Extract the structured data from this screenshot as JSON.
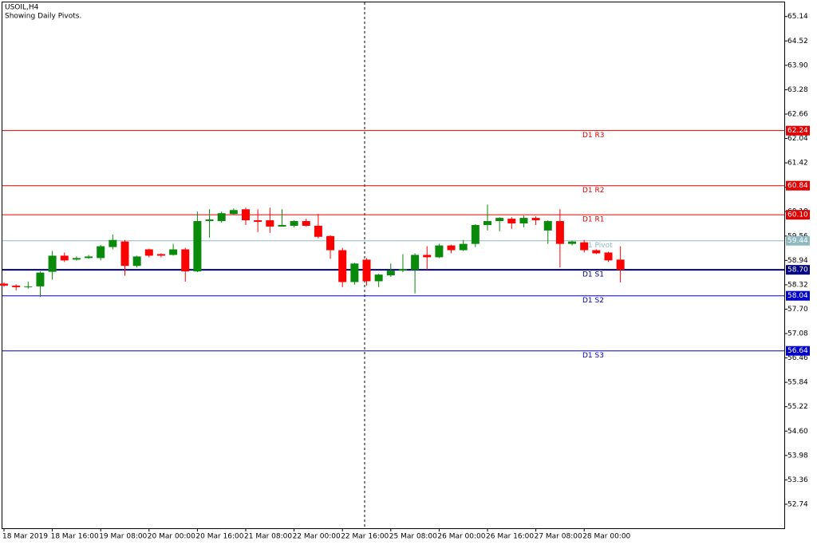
{
  "chart_data": {
    "type": "candlestick",
    "title": "USOIL,H4",
    "subtitle": "Showing Daily Pivots.",
    "x": [
      "18 Mar 2019",
      null,
      null,
      null,
      "18 Mar 16:00",
      null,
      null,
      null,
      "19 Mar 08:00",
      null,
      null,
      null,
      "20 Mar 00:00",
      null,
      null,
      null,
      "20 Mar 16:00",
      null,
      null,
      null,
      "21 Mar 08:00",
      null,
      null,
      null,
      "22 Mar 00:00",
      null,
      null,
      null,
      "22 Mar 16:00",
      null,
      null,
      null,
      "25 Mar 08:00",
      null,
      null,
      null,
      "26 Mar 00:00",
      null,
      null,
      null,
      "26 Mar 16:00",
      null,
      null,
      null,
      "27 Mar 08:00",
      null,
      null,
      null,
      "28 Mar 00:00",
      null,
      null,
      null
    ],
    "series": [
      {
        "up_color": "#0a8a0a",
        "down_color": "#ff0000",
        "open": [
          58.35,
          58.3,
          58.26,
          58.28,
          58.65,
          59.06,
          58.96,
          59.0,
          59.0,
          59.28,
          59.42,
          58.8,
          59.22,
          59.1,
          59.08,
          59.22,
          58.66,
          59.94,
          59.94,
          60.12,
          60.24,
          59.96,
          59.96,
          59.8,
          59.82,
          59.94,
          59.82,
          59.56,
          59.2,
          58.39,
          58.96,
          58.41,
          58.56,
          58.68,
          58.7,
          59.08,
          59.02,
          59.32,
          59.2,
          59.36,
          59.84,
          59.94,
          60.0,
          59.88,
          60.02,
          59.7,
          59.94,
          59.36,
          59.4,
          59.2,
          59.14,
          58.96
        ],
        "high": [
          58.38,
          58.33,
          58.4,
          58.66,
          59.18,
          59.14,
          59.04,
          59.08,
          59.33,
          59.6,
          59.46,
          59.06,
          59.24,
          59.12,
          59.36,
          59.26,
          60.18,
          60.24,
          60.18,
          60.26,
          60.28,
          60.24,
          60.28,
          60.24,
          59.96,
          60.0,
          60.12,
          59.58,
          59.26,
          58.88,
          59.0,
          58.6,
          58.86,
          59.1,
          59.12,
          59.3,
          59.36,
          59.34,
          59.46,
          59.86,
          60.36,
          60.04,
          60.04,
          60.08,
          60.06,
          59.96,
          60.24,
          59.44,
          59.46,
          59.22,
          59.16,
          59.3
        ],
        "low": [
          58.27,
          58.18,
          58.22,
          58.01,
          58.45,
          58.9,
          58.94,
          58.98,
          58.94,
          59.22,
          58.55,
          58.76,
          59.02,
          59.02,
          59.06,
          58.4,
          58.64,
          59.52,
          59.9,
          60.1,
          59.84,
          59.66,
          59.64,
          59.8,
          59.78,
          59.8,
          59.5,
          58.98,
          58.26,
          58.32,
          58.3,
          58.26,
          58.52,
          58.64,
          58.1,
          58.7,
          59.0,
          59.12,
          59.18,
          59.28,
          59.7,
          59.68,
          59.74,
          59.78,
          59.84,
          59.36,
          58.76,
          59.32,
          59.14,
          59.1,
          58.9,
          58.38
        ],
        "close": [
          58.3,
          58.26,
          58.28,
          58.63,
          59.06,
          58.94,
          59.0,
          59.04,
          59.3,
          59.46,
          58.8,
          59.04,
          59.06,
          59.06,
          59.22,
          58.66,
          59.94,
          59.98,
          60.14,
          60.22,
          59.96,
          59.92,
          59.8,
          59.84,
          59.94,
          59.82,
          59.54,
          59.2,
          58.39,
          58.86,
          58.41,
          58.58,
          58.68,
          58.72,
          59.08,
          59.02,
          59.32,
          59.2,
          59.36,
          59.84,
          59.94,
          60.02,
          59.88,
          60.02,
          59.96,
          59.94,
          59.36,
          59.42,
          59.2,
          59.12,
          58.94,
          58.7
        ]
      }
    ],
    "levels": [
      {
        "name": "D1 R3",
        "value": 62.24,
        "color": "#e00000"
      },
      {
        "name": "D1 R2",
        "value": 60.84,
        "color": "#e00000"
      },
      {
        "name": "D1 R1",
        "value": 60.1,
        "value_label": "60.10",
        "color": "#e00000"
      },
      {
        "name": "D1 Pivot",
        "value": 59.44,
        "color": "#8fb8c0"
      },
      {
        "name": "D1 S1",
        "value": 58.7,
        "value_label": "58.70",
        "color": "#000080"
      },
      {
        "name": "D1 S2",
        "value": 58.04,
        "color": "#0000cc"
      },
      {
        "name": "D1 S3",
        "value": 56.64,
        "color": "#0000cc"
      }
    ],
    "ylim": [
      52.13,
      65.5
    ],
    "yticks": [
      65.14,
      64.52,
      {
        "value": 63.9,
        "label": "63.90"
      },
      63.28,
      62.66,
      62.04,
      61.42,
      {
        "value": 60.8,
        "label": "60.80"
      },
      60.18,
      59.56,
      58.94,
      58.32,
      {
        "value": 57.7,
        "label": "57.70"
      },
      57.08,
      56.46,
      55.84,
      55.22,
      {
        "value": 54.6,
        "label": "54.60"
      },
      53.98,
      53.36,
      52.74
    ]
  }
}
